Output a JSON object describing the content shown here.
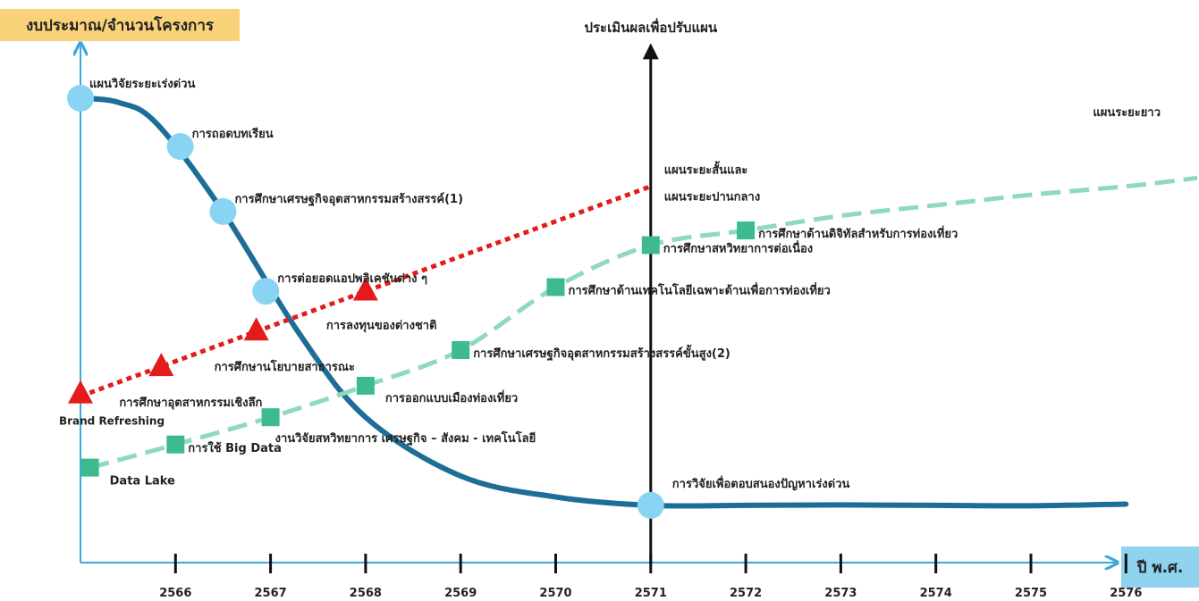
{
  "chart_data": {
    "type": "line",
    "ylabel": "งบประมาณ/จำนวนโครงการ",
    "xlabel": "ปี พ.ศ.",
    "milestone_label": "ประเมินผลเพื่อปรับแผน",
    "milestone_x": 2571,
    "x_ticks": [
      "2566",
      "2567",
      "2568",
      "2569",
      "2570",
      "2571",
      "2572",
      "2573",
      "2574",
      "2575",
      "2576"
    ],
    "colors": {
      "axis": "#3aa8dc",
      "blue": "#1c6e96",
      "blue_dot": "#8ad4f3",
      "red": "#e31b1b",
      "green": "#8fd9c0",
      "green_dot": "#3dbb8e"
    },
    "series": [
      {
        "name": "แผนวิจัยระยะเร่งด่วน",
        "style": "blue-solid",
        "curve": [
          [
            2565.0,
            100
          ],
          [
            2565.4,
            99
          ],
          [
            2565.8,
            94
          ],
          [
            2566.5,
            73
          ],
          [
            2567.3,
            44
          ],
          [
            2568.0,
            24
          ],
          [
            2569.0,
            10
          ],
          [
            2570.0,
            5
          ],
          [
            2571.0,
            3
          ],
          [
            2572.0,
            3
          ],
          [
            2573.0,
            3.1
          ],
          [
            2574.0,
            3.0
          ],
          [
            2575.0,
            2.9
          ],
          [
            2576.0,
            3.3
          ]
        ],
        "points": [
          {
            "x": 2565.0,
            "y": 100,
            "label": "แผนวิจัยระยะเร่งด่วน",
            "align": "start"
          },
          {
            "x": 2566.05,
            "y": 88.5,
            "label": "การถอดบทเรียน",
            "align": "start"
          },
          {
            "x": 2566.5,
            "y": 73,
            "label": "การศึกษาเศรษฐกิจอุตสาหกรรมสร้างสรรค์(1)",
            "align": "start"
          },
          {
            "x": 2566.95,
            "y": 54,
            "label": "การต่อยอดแอปพลิเคชันต่าง ๆ",
            "align": "start"
          },
          {
            "x": 2571.0,
            "y": 3,
            "label": "การวิจัยเพื่อตอบสนองปัญหาเร่งด่วน",
            "align": "start"
          }
        ]
      },
      {
        "name": "แผนระยะสั้นและแผนระยะปานกลาง",
        "label_lines": [
          "แผนระยะสั้นและ",
          "แผนระยะปานกลาง"
        ],
        "style": "red-dotted",
        "curve": [
          [
            2565.0,
            29
          ],
          [
            2571.0,
            79
          ]
        ],
        "points": [
          {
            "x": 2565.0,
            "y": 29,
            "label": "Brand Refreshing",
            "align": "middle"
          },
          {
            "x": 2565.85,
            "y": 35.5,
            "label": "การศึกษาอุตสาหกรรมเชิงลึก",
            "align": "start"
          },
          {
            "x": 2566.85,
            "y": 44,
            "label": "การศึกษานโยบายสาธารณะ",
            "align": "start"
          },
          {
            "x": 2568.0,
            "y": 53.5,
            "label": "การลงทุนของต่างชาติ",
            "align": "start"
          }
        ]
      },
      {
        "name": "แผนระยะยาว",
        "style": "green-dashed",
        "curve": [
          [
            2565.1,
            12
          ],
          [
            2566.0,
            17.5
          ],
          [
            2567.0,
            24
          ],
          [
            2568.0,
            31.5
          ],
          [
            2569.0,
            40
          ],
          [
            2570.0,
            55
          ],
          [
            2571.0,
            65
          ],
          [
            2572.0,
            68.5
          ],
          [
            2573.0,
            72
          ],
          [
            2574.0,
            74.5
          ],
          [
            2575.0,
            77
          ],
          [
            2576.0,
            79
          ],
          [
            2576.75,
            81
          ]
        ],
        "points": [
          {
            "x": 2565.1,
            "y": 12,
            "label": "Data Lake",
            "align": "start"
          },
          {
            "x": 2566.0,
            "y": 17.5,
            "label": "การใช้ Big Data",
            "align": "start"
          },
          {
            "x": 2567.0,
            "y": 24,
            "label": "งานวิจัยสหวิทยาการ เศรษฐกิจ – สังคม - เทคโนโลยี",
            "align": "start"
          },
          {
            "x": 2568.0,
            "y": 31.5,
            "label": "การออกแบบเมืองท่องเที่ยว",
            "align": "start"
          },
          {
            "x": 2569.0,
            "y": 40,
            "label": "การศึกษาเศรษฐกิจอุตสาหกรรมสร้างสรรค์ขั้นสูง(2)",
            "align": "start"
          },
          {
            "x": 2570.0,
            "y": 55,
            "label": "การศึกษาด้านเทคโนโลยีเฉพาะด้านเพื่อการท่องเที่ยว",
            "align": "start"
          },
          {
            "x": 2571.0,
            "y": 65,
            "label": "การศึกษาสหวิทยาการต่อเนื่อง",
            "align": "start"
          },
          {
            "x": 2572.0,
            "y": 68.5,
            "label": "การศึกษาด้านดิจิทัลสำหรับการท่องเที่ยว",
            "align": "start"
          }
        ]
      }
    ]
  }
}
